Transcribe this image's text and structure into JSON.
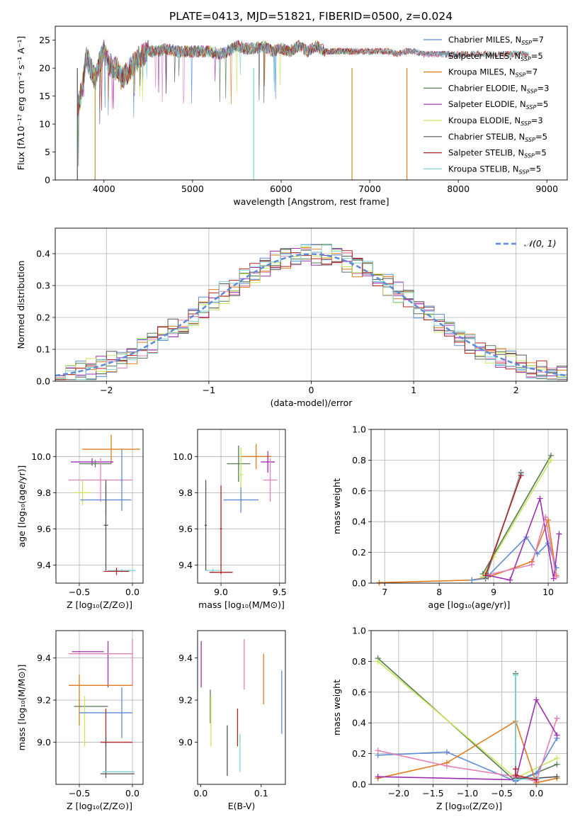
{
  "figure": {
    "title": "PLATE=0413, MJD=51821, FIBERID=0500, z=0.024"
  },
  "colors": {
    "blue": "#5b8bd9",
    "orange": "#e07b20",
    "olive": "#b5942e",
    "darkgreen": "#557a55",
    "purple": "#9b2fb0",
    "lime": "#c8e65a",
    "gray": "#555555",
    "red": "#b22222",
    "cyan": "#7dd3d3",
    "pink": "#e57fb7"
  },
  "chart_data": [
    {
      "id": "spectrum",
      "type": "line",
      "xlabel": "wavelength [Angstrom, rest frame]",
      "ylabel": "Flux [fλ10⁻¹⁷ erg cm⁻² s⁻¹ A⁻¹]",
      "xlim": [
        3450,
        9230
      ],
      "ylim": [
        0,
        27.5
      ],
      "xticks": [
        4000,
        5000,
        6000,
        7000,
        8000,
        9000
      ],
      "yticks": [
        0,
        5,
        10,
        15,
        20,
        25
      ],
      "grid": false,
      "legend_position": "top-right",
      "x": [
        3700,
        3750,
        3800,
        3850,
        3900,
        3950,
        4000,
        4050,
        4100,
        4150,
        4200,
        4250,
        4300,
        4350,
        4400,
        4500,
        4600,
        4700,
        4800,
        4900,
        5000,
        5100,
        5200,
        5300,
        5400,
        5500,
        5600,
        5700,
        5800,
        5900,
        6000,
        6100,
        6200,
        6300,
        6400,
        6500,
        6600,
        6700,
        6800,
        6900,
        7000,
        7100,
        7200,
        7300,
        7400,
        7500,
        7600,
        7700,
        7800,
        7900,
        8000,
        8100,
        8200,
        8300,
        8400,
        8500,
        8600,
        8700,
        8800,
        8900,
        9000,
        9100,
        9200
      ],
      "series": [
        {
          "name": "Chabrier MILES, N_SSP=7",
          "label_main": "Chabrier MILES, N",
          "label_sub": "SSP",
          "label_tail": "=7",
          "color": "#5b8bd9",
          "end": 8000
        },
        {
          "name": "Salpeter MILES, N_SSP=5",
          "label_main": "Salpeter MILES, N",
          "label_sub": "SSP",
          "label_tail": "=5",
          "color": "#e57fb7",
          "end": 7500
        },
        {
          "name": "Kroupa MILES, N_SSP=7",
          "label_main": "Kroupa MILES, N",
          "label_sub": "SSP",
          "label_tail": "=7",
          "color": "#e07b20",
          "end": 7450
        },
        {
          "name": "Chabrier ELODIE, N_SSP=3",
          "label_main": "Chabrier ELODIE, N",
          "label_sub": "SSP",
          "label_tail": "=3",
          "color": "#557a55",
          "end": 6800
        },
        {
          "name": "Salpeter ELODIE, N_SSP=5",
          "label_main": "Salpeter ELODIE, N",
          "label_sub": "SSP",
          "label_tail": "=5",
          "color": "#9b2fb0",
          "end": 6800
        },
        {
          "name": "Kroupa ELODIE, N_SSP=3",
          "label_main": "Kroupa ELODIE, N",
          "label_sub": "SSP",
          "label_tail": "=3",
          "color": "#c8e65a",
          "end": 6800
        },
        {
          "name": "Chabrier STELIB, N_SSP=5",
          "label_main": "Chabrier STELIB, N",
          "label_sub": "SSP",
          "label_tail": "=5",
          "color": "#555555",
          "end": 8800
        },
        {
          "name": "Salpeter STELIB, N_SSP=5",
          "label_main": "Salpeter STELIB, N",
          "label_sub": "SSP",
          "label_tail": "=5",
          "color": "#b22222",
          "end": 8800
        },
        {
          "name": "Kroupa STELIB, N_SSP=5",
          "label_main": "Kroupa STELIB, N",
          "label_sub": "SSP",
          "label_tail": "=5",
          "color": "#7dd3d3",
          "end": 8800
        }
      ],
      "flux": [
        13,
        16,
        22,
        20,
        18,
        21,
        23,
        21,
        20,
        20,
        18,
        19,
        20,
        21,
        22,
        23,
        23,
        23.5,
        23,
        23,
        23,
        23,
        23,
        22.5,
        23,
        24,
        23.5,
        23.5,
        24,
        23,
        23.5,
        23,
        24,
        23,
        24,
        23,
        23,
        23,
        23,
        23,
        23,
        23,
        23,
        22.5,
        23,
        23,
        22.5,
        22.5,
        22.5,
        22.5,
        22.5,
        22.5,
        22.5,
        22.5,
        22.5,
        22.5,
        22.5,
        22.5,
        22.5,
        22.5,
        22.5,
        22.5,
        22.5
      ]
    },
    {
      "id": "residuals",
      "type": "histogram",
      "xlabel": "(data-model)/error",
      "ylabel": "Normed distribution",
      "xlim": [
        -2.5,
        2.5
      ],
      "ylim": [
        0,
        0.48
      ],
      "xticks": [
        -2,
        -1,
        0,
        1,
        2
      ],
      "yticks": [
        0.0,
        0.1,
        0.2,
        0.3,
        0.4
      ],
      "grid": true,
      "legend_position": "top-right",
      "legend": "𝒩(0, 1)",
      "gaussian_color": "#5b8bd9",
      "bin_width": 0.1
    },
    {
      "id": "age-vs-Z",
      "type": "errorbar",
      "xlabel": "Z [log₁₀(Z/Z⊙)]",
      "ylabel": "age  [log₁₀(age/yr)]",
      "xlim": [
        -0.72,
        0.1
      ],
      "ylim": [
        9.3,
        10.15
      ],
      "xticks": [
        -0.5,
        0.0
      ],
      "yticks": [
        9.4,
        9.6,
        9.8,
        10.0
      ],
      "grid": true,
      "points": [
        {
          "color": "#e07b20",
          "x": -0.2,
          "xerr": 0.27,
          "y": 10.04,
          "yerr": 0.08
        },
        {
          "color": "#9b2fb0",
          "x": -0.38,
          "xerr": 0.2,
          "y": 9.97,
          "yerr": 0.02
        },
        {
          "color": "#557a55",
          "x": -0.35,
          "xerr": 0.15,
          "y": 9.96,
          "yerr": 0.02
        },
        {
          "color": "#c8e65a",
          "x": -0.47,
          "xerr": 0.08,
          "y": 9.8,
          "yerr": 0.07
        },
        {
          "color": "#e57fb7",
          "x": -0.3,
          "xerr": 0.3,
          "y": 9.87,
          "yerr": 0.12
        },
        {
          "color": "#5b8bd9",
          "x": -0.25,
          "xerr": 0.24,
          "y": 9.76,
          "yerr": 0.08
        },
        {
          "color": "#5b8bd9",
          "x": -0.1,
          "xerr": 0.01,
          "y": 9.87,
          "yerr": 0.17
        },
        {
          "color": "#555555",
          "x": -0.25,
          "xerr": 0.02,
          "y": 9.62,
          "yerr": 0.25
        },
        {
          "color": "#7dd3d3",
          "x": -0.1,
          "xerr": 0.13,
          "y": 9.37,
          "yerr": 0.01
        },
        {
          "color": "#b22222",
          "x": -0.15,
          "xerr": 0.12,
          "y": 9.365,
          "yerr": 0.02
        }
      ]
    },
    {
      "id": "age-vs-mass",
      "type": "errorbar",
      "xlabel": "mass [log₁₀(M/M⊙)]",
      "ylabel": "",
      "xlim": [
        8.8,
        9.55
      ],
      "ylim": [
        9.3,
        10.15
      ],
      "xticks": [
        9.0,
        9.5
      ],
      "yticks": [
        9.4,
        9.6,
        9.8,
        10.0
      ],
      "grid": true,
      "points": [
        {
          "color": "#e07b20",
          "x": 9.3,
          "xerr": 0.13,
          "y": 10.0,
          "yerr": 0.07
        },
        {
          "color": "#9b2fb0",
          "x": 9.4,
          "xerr": 0.06,
          "y": 9.97,
          "yerr": 0.06
        },
        {
          "color": "#557a55",
          "x": 9.15,
          "xerr": 0.1,
          "y": 9.96,
          "yerr": 0.1
        },
        {
          "color": "#c8e65a",
          "x": 9.17,
          "xerr": 0.02,
          "y": 9.9,
          "yerr": 0.15
        },
        {
          "color": "#e57fb7",
          "x": 9.42,
          "xerr": 0.06,
          "y": 9.87,
          "yerr": 0.12
        },
        {
          "color": "#5b8bd9",
          "x": 9.17,
          "xerr": 0.15,
          "y": 9.76,
          "yerr": 0.07
        },
        {
          "color": "#555555",
          "x": 8.87,
          "xerr": 0.01,
          "y": 9.62,
          "yerr": 0.25
        },
        {
          "color": "#7dd3d3",
          "x": 8.93,
          "xerr": 0.06,
          "y": 9.37,
          "yerr": 0.01
        },
        {
          "color": "#b22222",
          "x": 9.0,
          "xerr": 0.1,
          "y": 9.36,
          "yerr": 0.01
        },
        {
          "color": "#b22222",
          "x": 9.0,
          "xerr": 0.01,
          "y": 9.6,
          "yerr": 0.24
        }
      ]
    },
    {
      "id": "massweight-vs-age",
      "type": "line",
      "xlabel": "age  [log₁₀(age/yr)]",
      "ylabel": "mass weight",
      "xlim": [
        6.75,
        10.35
      ],
      "ylim": [
        0,
        1.0
      ],
      "xticks": [
        7,
        8,
        9,
        10
      ],
      "yticks": [
        0.0,
        0.2,
        0.4,
        0.6,
        0.8,
        1.0
      ],
      "grid": true,
      "series": [
        {
          "color": "#e07b20",
          "x": [
            6.9,
            8.6,
            8.9,
            9.7,
            10.0,
            10.15
          ],
          "y": [
            0.003,
            0.02,
            0.04,
            0.14,
            0.41,
            0.05
          ]
        },
        {
          "color": "#5b8bd9",
          "x": [
            8.6,
            8.85,
            9.6,
            9.8,
            10.0,
            10.15
          ],
          "y": [
            0.02,
            0.03,
            0.3,
            0.19,
            0.26,
            0.1
          ]
        },
        {
          "color": "#9b2fb0",
          "x": [
            8.9,
            9.3,
            9.85,
            10.1,
            10.2
          ],
          "y": [
            0.05,
            0.02,
            0.55,
            0.03,
            0.32
          ]
        },
        {
          "color": "#e57fb7",
          "x": [
            8.85,
            9.7,
            9.95,
            10.15
          ],
          "y": [
            0.05,
            0.12,
            0.43,
            0.04
          ]
        },
        {
          "color": "#557a55",
          "x": [
            8.8,
            10.05
          ],
          "y": [
            0.06,
            0.83
          ]
        },
        {
          "color": "#c8e65a",
          "x": [
            8.8,
            9.0,
            10.05
          ],
          "y": [
            0.04,
            0.17,
            0.8
          ]
        },
        {
          "color": "#555555",
          "x": [
            8.85,
            9.5
          ],
          "y": [
            0.03,
            0.72
          ]
        },
        {
          "color": "#7dd3d3",
          "x": [
            8.85,
            9.5
          ],
          "y": [
            0.04,
            0.71
          ]
        },
        {
          "color": "#b22222",
          "x": [
            8.85,
            9.5
          ],
          "y": [
            0.05,
            0.7
          ]
        }
      ]
    },
    {
      "id": "mass-vs-Z",
      "type": "errorbar",
      "xlabel": "Z [log₁₀(Z/Z⊙)]",
      "ylabel": "mass [log₁₀(M/M⊙)]",
      "xlim": [
        -0.72,
        0.1
      ],
      "ylim": [
        8.8,
        9.53
      ],
      "xticks": [
        -0.5,
        0.0
      ],
      "yticks": [
        9.0,
        9.2,
        9.4
      ],
      "grid": true,
      "points": [
        {
          "color": "#9b2fb0",
          "x": -0.42,
          "xerr": 0.15,
          "y": 9.43,
          "yerr": 0.0
        },
        {
          "color": "#9b2fb0",
          "x": -0.23,
          "xerr": 0.0,
          "y": 9.37,
          "yerr": 0.11
        },
        {
          "color": "#e57fb7",
          "x": -0.3,
          "xerr": 0.3,
          "y": 9.42,
          "yerr": 0.0
        },
        {
          "color": "#e57fb7",
          "x": 0.0,
          "xerr": 0.0,
          "y": 9.38,
          "yerr": 0.11
        },
        {
          "color": "#e07b20",
          "x": -0.3,
          "xerr": 0.3,
          "y": 9.27,
          "yerr": 0.0
        },
        {
          "color": "#e07b20",
          "x": -0.5,
          "xerr": 0.0,
          "y": 9.2,
          "yerr": 0.12
        },
        {
          "color": "#557a55",
          "x": -0.39,
          "xerr": 0.16,
          "y": 9.17,
          "yerr": 0.0
        },
        {
          "color": "#c8e65a",
          "x": -0.45,
          "xerr": 0.0,
          "y": 9.1,
          "yerr": 0.12
        },
        {
          "color": "#5b8bd9",
          "x": -0.25,
          "xerr": 0.25,
          "y": 9.14,
          "yerr": 0.0
        },
        {
          "color": "#5b8bd9",
          "x": -0.1,
          "xerr": 0.0,
          "y": 9.14,
          "yerr": 0.12
        },
        {
          "color": "#b22222",
          "x": -0.15,
          "xerr": 0.15,
          "y": 9.0,
          "yerr": 0.0
        },
        {
          "color": "#b22222",
          "x": -0.25,
          "xerr": 0.0,
          "y": 9.07,
          "yerr": 0.09
        },
        {
          "color": "#555555",
          "x": -0.14,
          "xerr": 0.16,
          "y": 8.85,
          "yerr": 0.0
        },
        {
          "color": "#555555",
          "x": -0.25,
          "xerr": 0.0,
          "y": 8.93,
          "yerr": 0.1
        },
        {
          "color": "#7dd3d3",
          "x": -0.13,
          "xerr": 0.15,
          "y": 8.86,
          "yerr": 0.0
        }
      ]
    },
    {
      "id": "mass-vs-ebv",
      "type": "errorbar",
      "xlabel": "E(B-V)",
      "ylabel": "",
      "xlim": [
        -0.005,
        0.14
      ],
      "ylim": [
        8.8,
        9.53
      ],
      "xticks": [
        0.0,
        0.1
      ],
      "yticks": [
        9.0,
        9.2,
        9.4
      ],
      "grid": false,
      "points": [
        {
          "color": "#9b2fb0",
          "x": 0.001,
          "y": 9.37,
          "yerr": 0.11
        },
        {
          "color": "#557a55",
          "x": 0.016,
          "y": 9.17,
          "yerr": 0.08
        },
        {
          "color": "#c8e65a",
          "x": 0.017,
          "y": 9.1,
          "yerr": 0.12
        },
        {
          "color": "#555555",
          "x": 0.044,
          "y": 8.96,
          "yerr": 0.12
        },
        {
          "color": "#b22222",
          "x": 0.061,
          "y": 9.07,
          "yerr": 0.09
        },
        {
          "color": "#7dd3d3",
          "x": 0.065,
          "y": 8.95,
          "yerr": 0.09
        },
        {
          "color": "#e57fb7",
          "x": 0.072,
          "y": 9.37,
          "yerr": 0.12
        },
        {
          "color": "#e07b20",
          "x": 0.104,
          "y": 9.3,
          "yerr": 0.12
        },
        {
          "color": "#5b8bd9",
          "x": 0.134,
          "y": 9.19,
          "yerr": 0.15
        }
      ]
    },
    {
      "id": "massweight-vs-Z",
      "type": "line",
      "xlabel": "Z [log₁₀(Z/Z⊙)]",
      "ylabel": "mass weight",
      "xlim": [
        -2.4,
        0.45
      ],
      "ylim": [
        0,
        1.0
      ],
      "xticks": [
        -2.0,
        -1.5,
        -1.0,
        -0.5,
        0.0
      ],
      "yticks": [
        0.0,
        0.2,
        0.4,
        0.6,
        0.8,
        1.0
      ],
      "grid": true,
      "series": [
        {
          "color": "#557a55",
          "x": [
            -2.3,
            -0.3,
            0.3
          ],
          "y": [
            0.82,
            0.02,
            0.13
          ]
        },
        {
          "color": "#c8e65a",
          "x": [
            -2.3,
            -0.3,
            0.3
          ],
          "y": [
            0.8,
            0.04,
            0.17
          ]
        },
        {
          "color": "#5b8bd9",
          "x": [
            -2.3,
            -1.3,
            -0.3,
            0.0,
            0.3
          ],
          "y": [
            0.19,
            0.21,
            0.02,
            0.07,
            0.3
          ]
        },
        {
          "color": "#e07b20",
          "x": [
            -2.3,
            -1.3,
            -0.3,
            0.0,
            0.3
          ],
          "y": [
            0.04,
            0.14,
            0.41,
            0.01,
            0.04
          ]
        },
        {
          "color": "#e57fb7",
          "x": [
            -2.3,
            -1.3,
            -0.3,
            0.0,
            0.3
          ],
          "y": [
            0.22,
            0.12,
            0.05,
            0.02,
            0.43
          ]
        },
        {
          "color": "#9b2fb0",
          "x": [
            -2.3,
            -0.3,
            0.0,
            0.3
          ],
          "y": [
            0.05,
            0.03,
            0.55,
            0.32
          ]
        },
        {
          "color": "#555555",
          "x": [
            -0.3,
            -0.3,
            0.0,
            0.3
          ],
          "y": [
            0.72,
            0.04,
            0.04,
            0.05
          ]
        },
        {
          "color": "#7dd3d3",
          "x": [
            -0.3,
            -0.3,
            0.0
          ],
          "y": [
            0.71,
            0.03,
            0.04
          ]
        },
        {
          "color": "#b22222",
          "x": [
            -0.3,
            -0.3,
            0.0
          ],
          "y": [
            0.1,
            0.06,
            0.03
          ]
        }
      ]
    }
  ]
}
